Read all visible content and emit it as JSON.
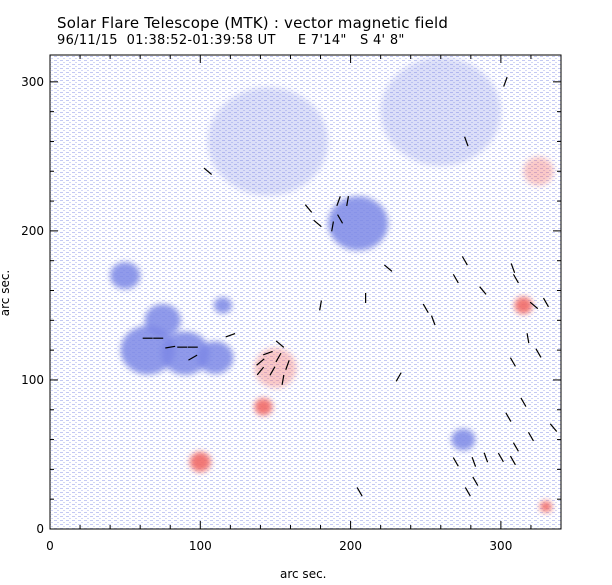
{
  "header": {
    "title": "Solar Flare Telescope (MTK) : vector magnetic field",
    "subtitle": "96/11/15  01:38:52-01:39:58 UT     E 7'14\"   S 4' 8\""
  },
  "axes": {
    "xlabel": "arc sec.",
    "ylabel": "arc sec.",
    "xlim": [
      0,
      340
    ],
    "ylim": [
      0,
      318
    ],
    "xticks": [
      0,
      100,
      200,
      300
    ],
    "yticks": [
      0,
      100,
      200,
      300
    ]
  },
  "colors": {
    "negative": "#7d88e6",
    "positive": "#f0605e",
    "background_noise": "#b7bdf0",
    "vector": "#000000"
  },
  "field": {
    "negative_regions": [
      {
        "x": 50,
        "y": 170,
        "r": 10
      },
      {
        "x": 75,
        "y": 140,
        "r": 12
      },
      {
        "x": 90,
        "y": 118,
        "r": 16
      },
      {
        "x": 110,
        "y": 115,
        "r": 12
      },
      {
        "x": 65,
        "y": 120,
        "r": 18
      },
      {
        "x": 115,
        "y": 150,
        "r": 6
      },
      {
        "x": 145,
        "y": 260,
        "r": 40
      },
      {
        "x": 260,
        "y": 280,
        "r": 40
      },
      {
        "x": 205,
        "y": 205,
        "r": 20
      },
      {
        "x": 275,
        "y": 60,
        "r": 8
      }
    ],
    "positive_regions": [
      {
        "x": 150,
        "y": 108,
        "r": 14
      },
      {
        "x": 142,
        "y": 82,
        "r": 6
      },
      {
        "x": 100,
        "y": 45,
        "r": 7
      },
      {
        "x": 315,
        "y": 150,
        "r": 6
      },
      {
        "x": 330,
        "y": 15,
        "r": 4
      },
      {
        "x": 325,
        "y": 240,
        "r": 10
      }
    ],
    "vectors": [
      {
        "x": 65,
        "y": 128,
        "angle": 0
      },
      {
        "x": 72,
        "y": 128,
        "angle": 0
      },
      {
        "x": 80,
        "y": 122,
        "angle": 10
      },
      {
        "x": 88,
        "y": 122,
        "angle": 0
      },
      {
        "x": 95,
        "y": 122,
        "angle": 0
      },
      {
        "x": 95,
        "y": 115,
        "angle": 30
      },
      {
        "x": 120,
        "y": 130,
        "angle": 20
      },
      {
        "x": 105,
        "y": 240,
        "angle": -40
      },
      {
        "x": 140,
        "y": 112,
        "angle": 40
      },
      {
        "x": 145,
        "y": 118,
        "angle": 20
      },
      {
        "x": 152,
        "y": 115,
        "angle": 60
      },
      {
        "x": 148,
        "y": 106,
        "angle": 60
      },
      {
        "x": 140,
        "y": 106,
        "angle": 50
      },
      {
        "x": 155,
        "y": 100,
        "angle": 80
      },
      {
        "x": 158,
        "y": 110,
        "angle": 70
      },
      {
        "x": 153,
        "y": 124,
        "angle": -40
      },
      {
        "x": 172,
        "y": 215,
        "angle": -50
      },
      {
        "x": 178,
        "y": 205,
        "angle": -40
      },
      {
        "x": 188,
        "y": 203,
        "angle": 80
      },
      {
        "x": 192,
        "y": 220,
        "angle": 70
      },
      {
        "x": 198,
        "y": 220,
        "angle": 80
      },
      {
        "x": 193,
        "y": 208,
        "angle": -60
      },
      {
        "x": 180,
        "y": 150,
        "angle": 80
      },
      {
        "x": 210,
        "y": 155,
        "angle": 90
      },
      {
        "x": 225,
        "y": 175,
        "angle": -40
      },
      {
        "x": 232,
        "y": 102,
        "angle": 60
      },
      {
        "x": 250,
        "y": 148,
        "angle": -60
      },
      {
        "x": 255,
        "y": 140,
        "angle": -70
      },
      {
        "x": 270,
        "y": 168,
        "angle": -60
      },
      {
        "x": 276,
        "y": 180,
        "angle": -60
      },
      {
        "x": 288,
        "y": 160,
        "angle": -50
      },
      {
        "x": 308,
        "y": 175,
        "angle": -70
      },
      {
        "x": 310,
        "y": 168,
        "angle": -60
      },
      {
        "x": 322,
        "y": 150,
        "angle": -40
      },
      {
        "x": 318,
        "y": 128,
        "angle": -80
      },
      {
        "x": 308,
        "y": 112,
        "angle": -60
      },
      {
        "x": 325,
        "y": 118,
        "angle": -60
      },
      {
        "x": 330,
        "y": 152,
        "angle": -60
      },
      {
        "x": 305,
        "y": 75,
        "angle": -60
      },
      {
        "x": 315,
        "y": 85,
        "angle": -60
      },
      {
        "x": 320,
        "y": 62,
        "angle": -60
      },
      {
        "x": 310,
        "y": 55,
        "angle": -60
      },
      {
        "x": 335,
        "y": 68,
        "angle": -50
      },
      {
        "x": 270,
        "y": 45,
        "angle": -60
      },
      {
        "x": 282,
        "y": 45,
        "angle": -70
      },
      {
        "x": 290,
        "y": 48,
        "angle": -70
      },
      {
        "x": 300,
        "y": 48,
        "angle": -60
      },
      {
        "x": 308,
        "y": 46,
        "angle": -60
      },
      {
        "x": 278,
        "y": 25,
        "angle": -60
      },
      {
        "x": 283,
        "y": 32,
        "angle": -60
      },
      {
        "x": 206,
        "y": 25,
        "angle": -60
      },
      {
        "x": 277,
        "y": 260,
        "angle": -70
      },
      {
        "x": 303,
        "y": 300,
        "angle": 70
      }
    ]
  }
}
